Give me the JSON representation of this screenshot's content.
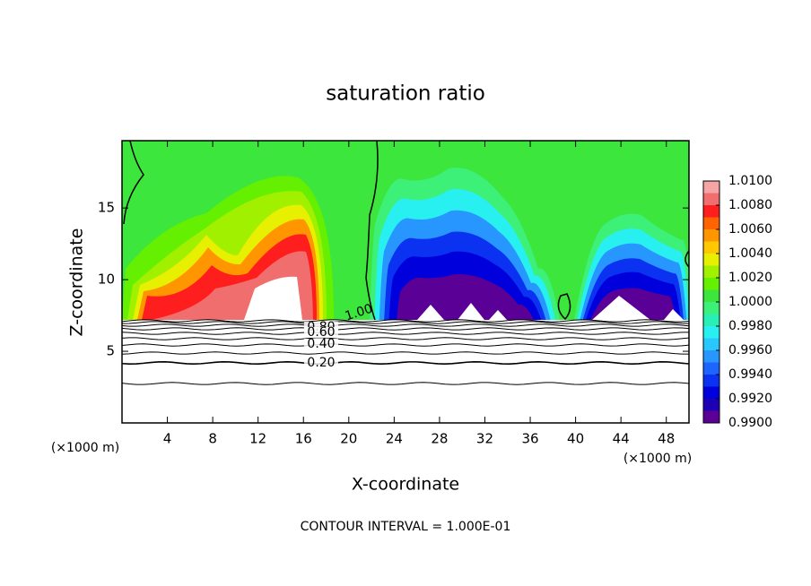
{
  "chart_data": {
    "type": "contourf",
    "title": "saturation ratio",
    "x_label": "X-coordinate",
    "y_label": "Z-coordinate",
    "x_unit": "(×1000 m)",
    "x_unit_right": "(×1000 m)",
    "footer": "CONTOUR INTERVAL = 1.000E-01",
    "xlim": [
      0,
      50
    ],
    "ylim": [
      0,
      19.7
    ],
    "xticks": [
      4,
      8,
      12,
      16,
      20,
      24,
      28,
      32,
      36,
      40,
      44,
      48
    ],
    "yticks": [
      5,
      10,
      15
    ],
    "contour_labels": [
      "1.00",
      "0.80",
      "0.60",
      "0.40",
      "0.20"
    ],
    "colorbar": {
      "levels": [
        0.99,
        0.991,
        0.992,
        0.993,
        0.994,
        0.995,
        0.996,
        0.997,
        0.998,
        0.999,
        1.0,
        1.001,
        1.002,
        1.003,
        1.004,
        1.005,
        1.006,
        1.007,
        1.008,
        1.009,
        1.01
      ],
      "colors": [
        "#5a0096",
        "#1e00b4",
        "#0000dc",
        "#0a32f0",
        "#1e64ff",
        "#2896ff",
        "#28c8ff",
        "#28f0f0",
        "#28f0b4",
        "#3cf078",
        "#3ce63c",
        "#64f000",
        "#a0f000",
        "#e6f000",
        "#ffc800",
        "#ff9600",
        "#ff6400",
        "#ff1e1e",
        "#f06e6e",
        "#f5a5a5"
      ],
      "ticks": [
        {
          "value": 1.01,
          "label": "1.0100"
        },
        {
          "value": 1.008,
          "label": "1.0080"
        },
        {
          "value": 1.006,
          "label": "1.0060"
        },
        {
          "value": 1.004,
          "label": "1.0040"
        },
        {
          "value": 1.002,
          "label": "1.0020"
        },
        {
          "value": 1.0,
          "label": "1.0000"
        },
        {
          "value": 0.998,
          "label": "0.9980"
        },
        {
          "value": 0.996,
          "label": "0.9960"
        },
        {
          "value": 0.994,
          "label": "0.9940"
        },
        {
          "value": 0.992,
          "label": "0.9920"
        },
        {
          "value": 0.99,
          "label": "0.9900"
        }
      ]
    }
  }
}
